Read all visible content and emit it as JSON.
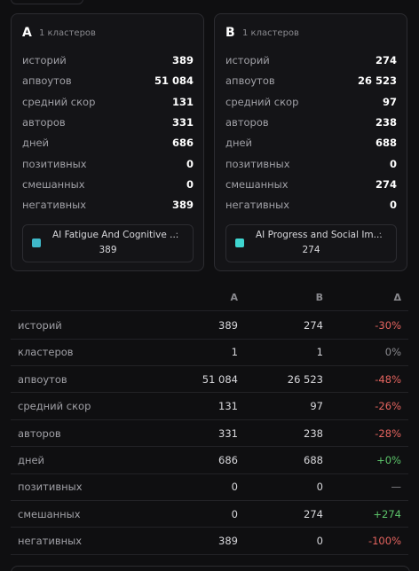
{
  "cards": [
    {
      "label": "A",
      "clusters": "1 кластеров",
      "stats": [
        {
          "label": "историй",
          "value": "389"
        },
        {
          "label": "апвоутов",
          "value": "51 084"
        },
        {
          "label": "средний скор",
          "value": "131"
        },
        {
          "label": "авторов",
          "value": "331"
        },
        {
          "label": "дней",
          "value": "686"
        },
        {
          "label": "позитивных",
          "value": "0"
        },
        {
          "label": "смешанных",
          "value": "0"
        },
        {
          "label": "негативных",
          "value": "389"
        }
      ],
      "cluster": {
        "name": "AI Fatigue And Cognitive ...",
        "sep": "·",
        "count": "389",
        "color": "#3fb8c9"
      }
    },
    {
      "label": "B",
      "clusters": "1 кластеров",
      "stats": [
        {
          "label": "историй",
          "value": "274"
        },
        {
          "label": "апвоутов",
          "value": "26 523"
        },
        {
          "label": "средний скор",
          "value": "97"
        },
        {
          "label": "авторов",
          "value": "238"
        },
        {
          "label": "дней",
          "value": "688"
        },
        {
          "label": "позитивных",
          "value": "0"
        },
        {
          "label": "смешанных",
          "value": "274"
        },
        {
          "label": "негативных",
          "value": "0"
        }
      ],
      "cluster": {
        "name": "AI Progress and Social Im...",
        "sep": "·",
        "count": "274",
        "color": "#3fd6d0"
      }
    }
  ],
  "table": {
    "headers": [
      "A",
      "B",
      "Δ"
    ],
    "rows": [
      {
        "label": "историй",
        "a": "389",
        "b": "274",
        "delta": "-30%",
        "delta_color": "#e5645f"
      },
      {
        "label": "кластеров",
        "a": "1",
        "b": "1",
        "delta": "0%",
        "delta_color": "#8a8a8f"
      },
      {
        "label": "апвоутов",
        "a": "51 084",
        "b": "26 523",
        "delta": "-48%",
        "delta_color": "#e5645f"
      },
      {
        "label": "средний скор",
        "a": "131",
        "b": "97",
        "delta": "-26%",
        "delta_color": "#e5645f"
      },
      {
        "label": "авторов",
        "a": "331",
        "b": "238",
        "delta": "-28%",
        "delta_color": "#e5645f"
      },
      {
        "label": "дней",
        "a": "686",
        "b": "688",
        "delta": "+0%",
        "delta_color": "#5cc46a"
      },
      {
        "label": "позитивных",
        "a": "0",
        "b": "0",
        "delta": "—",
        "delta_color": "#8a8a8f"
      },
      {
        "label": "смешанных",
        "a": "0",
        "b": "274",
        "delta": "+274",
        "delta_color": "#5cc46a"
      },
      {
        "label": "негативных",
        "a": "389",
        "b": "0",
        "delta": "-100%",
        "delta_color": "#e5645f"
      }
    ]
  }
}
